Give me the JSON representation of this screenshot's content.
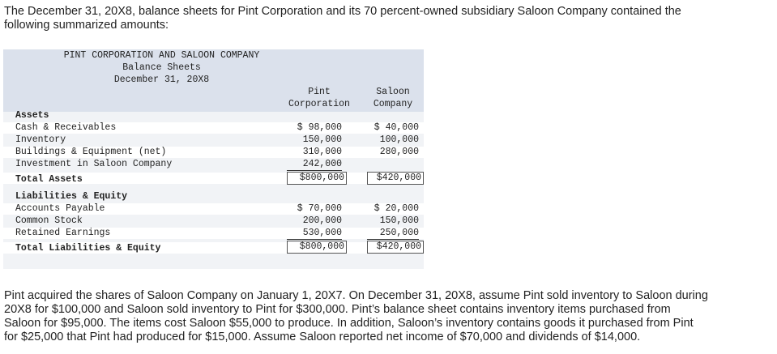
{
  "intro": {
    "line1": "The December 31, 20X8, balance sheets for Pint Corporation and its 70 percent-owned subsidiary Saloon Company contained the",
    "line2": "following summarized amounts:"
  },
  "statement": {
    "title": "PINT CORPORATION AND SALOON COMPANY",
    "subtitle": "Balance Sheets",
    "date": "December 31, 20X8",
    "col_pint_1": "Pint",
    "col_pint_2": "Corporation",
    "col_saloon_1": "Saloon",
    "col_saloon_2": "Company",
    "assets_header": "Assets",
    "rows_assets": [
      {
        "label": "Cash & Receivables",
        "pint": "$ 98,000",
        "saloon": "$ 40,000"
      },
      {
        "label": "Inventory",
        "pint": "150,000",
        "saloon": "100,000"
      },
      {
        "label": "Buildings & Equipment (net)",
        "pint": "310,000",
        "saloon": "280,000"
      },
      {
        "label": "Investment in Saloon Company",
        "pint": "242,000",
        "saloon": ""
      }
    ],
    "total_assets": {
      "label": "Total Assets",
      "pint": "$800,000",
      "saloon": "$420,000"
    },
    "liab_header": "Liabilities & Equity",
    "rows_liab": [
      {
        "label": "Accounts Payable",
        "pint": "$ 70,000",
        "saloon": "$ 20,000"
      },
      {
        "label": "Common Stock",
        "pint": "200,000",
        "saloon": "150,000"
      },
      {
        "label": "Retained Earnings",
        "pint": "530,000",
        "saloon": "250,000"
      }
    ],
    "total_liab": {
      "label": "Total Liabilities & Equity",
      "pint": "$800,000",
      "saloon": "$420,000"
    }
  },
  "outro": {
    "line1": "Pint acquired the shares of Saloon Company on January 1, 20X7. On December 31, 20X8, assume Pint sold inventory to Saloon during",
    "line2": "20X8 for $100,000 and Saloon sold inventory to Pint for $300,000. Pint’s balance sheet contains inventory items purchased from",
    "line3": "Saloon for $95,000. The items cost Saloon $55,000 to produce. In addition, Saloon’s inventory contains goods it purchased from Pint",
    "line4": "for $25,000 that Pint had produced for $15,000. Assume Saloon reported net income of $70,000 and dividends of $14,000."
  }
}
